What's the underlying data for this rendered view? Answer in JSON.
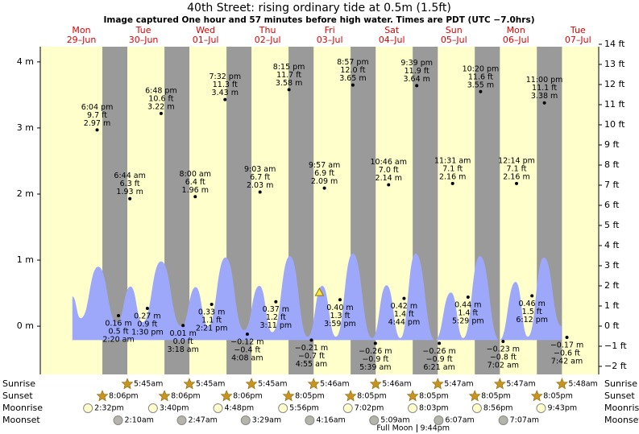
{
  "chart_data": {
    "type": "area",
    "title": "40th Street: rising  ordinary tide at 0.5m (1.5ft)",
    "subtitle": "Image captured One hour and 57 minutes before high water. Times are PDT (UTC −7.0hrs)",
    "days": [
      {
        "name": "Mon",
        "date": "29–Jun"
      },
      {
        "name": "Tue",
        "date": "30–Jun"
      },
      {
        "name": "Wed",
        "date": "01–Jul"
      },
      {
        "name": "Thu",
        "date": "02–Jul"
      },
      {
        "name": "Fri",
        "date": "03–Jul"
      },
      {
        "name": "Sat",
        "date": "04–Jul"
      },
      {
        "name": "Sun",
        "date": "05–Jul"
      },
      {
        "name": "Mon",
        "date": "06–Jul"
      },
      {
        "name": "Tue",
        "date": "07–Jul"
      }
    ],
    "xlim": [
      -3.9,
      212.0
    ],
    "ylim": [
      -0.73,
      4.23
    ],
    "yticks": [
      {
        "value": 0,
        "label": "0 m"
      },
      {
        "value": 1,
        "label": "1 m"
      },
      {
        "value": 2,
        "label": "2 m"
      },
      {
        "value": 3,
        "label": "3 m"
      },
      {
        "value": 4,
        "label": "4 m"
      }
    ],
    "y2lim": [
      -2.4,
      13.88
    ],
    "y2ticks": [
      {
        "value": -2,
        "label": "−2 ft"
      },
      {
        "value": -1,
        "label": "−1 ft"
      },
      {
        "value": 0,
        "label": "0 ft"
      },
      {
        "value": 1,
        "label": "1 ft"
      },
      {
        "value": 2,
        "label": "2 ft"
      },
      {
        "value": 3,
        "label": "3 ft"
      },
      {
        "value": 4,
        "label": "4 ft"
      },
      {
        "value": 5,
        "label": "5 ft"
      },
      {
        "value": 6,
        "label": "6 ft"
      },
      {
        "value": 7,
        "label": "7 ft"
      },
      {
        "value": 8,
        "label": "8 ft"
      },
      {
        "value": 9,
        "label": "9 ft"
      },
      {
        "value": 10,
        "label": "10 ft"
      },
      {
        "value": 11,
        "label": "11 ft"
      },
      {
        "value": 12,
        "label": "12 ft"
      },
      {
        "value": 13,
        "label": "13 ft"
      },
      {
        "value": 14,
        "label": "14 ft"
      }
    ],
    "day_color": "#ffffcc",
    "night_color": "#9a9a9a",
    "tide_curve": {
      "color": "#9da8fa",
      "x": [
        8.5,
        11.7,
        18.5,
        25.7,
        31.0,
        35.6,
        42.8,
        50.6,
        56.2,
        60.9,
        67.7,
        74.9,
        80.8,
        85.8,
        92.6,
        99.5,
        105.1,
        110.4,
        116.9,
        124.4,
        130.0,
        135.3,
        141.2,
        148.7,
        154.9,
        159.6,
        166.1,
        173.6,
        179.9,
        184.6,
        190.8,
        197.6
      ],
      "values": [
        0.45,
        0.12,
        0.9,
        0.06,
        0.6,
        0.06,
        0.98,
        0.0,
        0.59,
        0.0,
        1.04,
        -0.06,
        0.61,
        -0.09,
        1.06,
        -0.16,
        0.61,
        -0.16,
        1.1,
        -0.18,
        0.62,
        -0.18,
        1.1,
        -0.21,
        0.51,
        -0.18,
        1.06,
        -0.21,
        0.67,
        -0.16,
        1.04,
        0.0
      ]
    },
    "highs": {
      "x": [
        18.07,
        30.73,
        42.8,
        56.0,
        67.53,
        81.05,
        92.25,
        105.95,
        116.95,
        130.77,
        141.65,
        155.52,
        166.33,
        180.23,
        191.0
      ],
      "values": [
        2.97,
        1.93,
        3.22,
        1.96,
        3.43,
        2.03,
        3.58,
        2.09,
        3.65,
        2.14,
        3.64,
        2.16,
        3.55,
        2.16,
        3.38
      ],
      "value_labels": [
        "2.97 m",
        "1.93 m",
        "3.22 m",
        "1.96 m",
        "3.43 m",
        "2.03 m",
        "3.58 m",
        "2.09 m",
        "3.65 m",
        "2.14 m",
        "3.64 m",
        "2.16 m",
        "3.55 m",
        "2.16 m",
        "3.38 m"
      ],
      "ft_labels": [
        "9.7 ft",
        "6.3 ft",
        "10.6 ft",
        "6.4 ft",
        "11.3 ft",
        "6.7 ft",
        "11.7 ft",
        "6.9 ft",
        "12.0 ft",
        "7.0 ft",
        "11.9 ft",
        "7.1 ft",
        "11.6 ft",
        "7.1 ft",
        "11.1 ft"
      ],
      "time_labels": [
        "6:04 pm",
        "6:44 am",
        "6:48 pm",
        "8:00 am",
        "7:32 pm",
        "9:03 am",
        "8:15 pm",
        "9:57 am",
        "8:57 pm",
        "10:46 am",
        "9:39 pm",
        "11:31 am",
        "10:20 pm",
        "12:14 pm",
        "11:00 pm"
      ]
    },
    "lows": {
      "x": [
        26.33,
        37.5,
        51.3,
        62.35,
        76.13,
        87.18,
        100.92,
        111.98,
        125.65,
        136.73,
        150.35,
        161.48,
        175.03,
        186.2,
        199.7
      ],
      "values": [
        0.16,
        0.27,
        0.01,
        0.33,
        -0.12,
        0.37,
        -0.21,
        0.4,
        -0.26,
        0.42,
        -0.26,
        0.44,
        -0.23,
        0.46,
        -0.17
      ],
      "value_labels": [
        "0.16 m",
        "0.27 m",
        "0.01 m",
        "0.33 m",
        "−0.12 m",
        "0.37 m",
        "−0.21 m",
        "0.40 m",
        "−0.26 m",
        "0.42 m",
        "−0.26 m",
        "0.44 m",
        "−0.23 m",
        "0.46 m",
        "−0.17 m"
      ],
      "ft_labels": [
        "0.5 ft",
        "0.9 ft",
        "0.0 ft",
        "1.1 ft",
        "−0.4 ft",
        "1.2 ft",
        "−0.7 ft",
        "1.3 ft",
        "−0.9 ft",
        "1.4 ft",
        "−0.9 ft",
        "1.4 ft",
        "−0.8 ft",
        "1.5 ft",
        "−0.6 ft"
      ],
      "time_labels": [
        "2:20 am",
        "1:30 pm",
        "3:18 am",
        "2:21 pm",
        "4:08 am",
        "3:11 pm",
        "4:55 am",
        "3:59 pm",
        "5:39 am",
        "4:44 pm",
        "6:21 am",
        "5:29 pm",
        "7:02 am",
        "6:12 pm",
        "7:42 am"
      ]
    },
    "now": {
      "x": 104.0,
      "value": 0.5,
      "color": "#ffe24a"
    },
    "almanac": [
      {
        "label": "Sunrise",
        "marker": "star",
        "color": "#c8941e",
        "times": [
          "5:45am",
          "5:45am",
          "5:45am",
          "5:46am",
          "5:46am",
          "5:47am",
          "5:47am",
          "5:48am"
        ],
        "x": [
          29.75,
          53.75,
          77.75,
          101.77,
          125.77,
          149.78,
          173.78,
          197.8
        ]
      },
      {
        "label": "Sunset",
        "marker": "star",
        "color": "#c8941e",
        "times": [
          "8:06pm",
          "8:06pm",
          "8:06pm",
          "8:05pm",
          "8:05pm",
          "8:05pm",
          "8:05pm",
          "8:05pm"
        ],
        "x": [
          20.1,
          44.1,
          68.1,
          92.08,
          116.08,
          140.08,
          164.08,
          188.08
        ]
      },
      {
        "label": "Moonrise",
        "marker": "circle",
        "color": "#ffffcc",
        "times": [
          "2:32pm",
          "3:40pm",
          "4:48pm",
          "5:56pm",
          "7:02pm",
          "8:03pm",
          "8:56pm",
          "9:43pm"
        ],
        "x": [
          14.53,
          39.67,
          64.8,
          89.93,
          115.03,
          140.05,
          164.93,
          189.72
        ]
      },
      {
        "label": "Moonset",
        "marker": "circle",
        "color": "#b4b4aa",
        "times": [
          "2:10am",
          "2:47am",
          "3:29am",
          "4:16am",
          "5:09am",
          "6:07am",
          "7:07am"
        ],
        "x": [
          26.17,
          50.78,
          75.48,
          100.27,
          125.15,
          150.12,
          175.12
        ]
      }
    ],
    "full_moon": {
      "label": "Full Moon",
      "time": "9:44pm",
      "x": 141.73
    }
  }
}
